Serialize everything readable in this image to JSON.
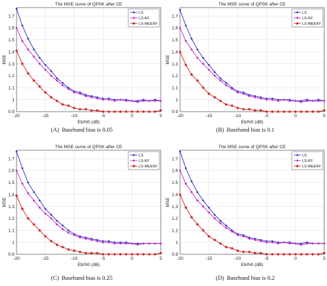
{
  "figure": {
    "panels": [
      {
        "caption_label": "(A)",
        "caption_text": "Baseband bias is 0.05"
      },
      {
        "caption_label": "(B)",
        "caption_text": "Baseband bias is 0.1"
      },
      {
        "caption_label": "(C)",
        "caption_text": "Baseband bias is 0.25"
      },
      {
        "caption_label": "(D)",
        "caption_text": "Baseband bias is 0.2"
      }
    ]
  },
  "colors": {
    "LS": "#2b2fc4",
    "LS-KF": "#c228c8",
    "LS-MEEKF": "#cc2020",
    "grid": "#e2e2e2",
    "axis": "#555555"
  },
  "chart_data": [
    {
      "type": "line",
      "title": "The MSE curve of QPSK after CE",
      "xlabel": "Eb/N0 (dB)",
      "ylabel": "MSE",
      "xlim": [
        -20,
        5
      ],
      "ylim": [
        0.9,
        1.77
      ],
      "xticks": [
        -20,
        -15,
        -10,
        -5,
        0,
        5
      ],
      "yticks": [
        0.9,
        1,
        1.1,
        1.2,
        1.3,
        1.4,
        1.5,
        1.6,
        1.7
      ],
      "grid": true,
      "legend_position": "top-right",
      "x": [
        -20,
        -19,
        -18,
        -17,
        -16,
        -15,
        -14,
        -13,
        -12,
        -11,
        -10,
        -9,
        -8,
        -7,
        -6,
        -5,
        -4,
        -3,
        -2,
        -1,
        0,
        1,
        2,
        3,
        4,
        5
      ],
      "series": [
        {
          "name": "LS",
          "values": [
            1.76,
            1.62,
            1.51,
            1.42,
            1.35,
            1.29,
            1.24,
            1.18,
            1.14,
            1.1,
            1.07,
            1.06,
            1.04,
            1.03,
            1.02,
            1.01,
            1.01,
            1.0,
            1.0,
            1.0,
            0.99,
            0.99,
            1.0,
            0.99,
            1.0,
            0.99
          ]
        },
        {
          "name": "LS-KF",
          "values": [
            1.6,
            1.49,
            1.42,
            1.36,
            1.3,
            1.25,
            1.2,
            1.16,
            1.12,
            1.09,
            1.06,
            1.05,
            1.03,
            1.02,
            1.01,
            1.0,
            1.0,
            0.99,
            1.0,
            0.99,
            0.99,
            0.98,
            0.99,
            0.99,
            0.99,
            0.99
          ]
        },
        {
          "name": "LS-MEEKF",
          "values": [
            1.41,
            1.3,
            1.22,
            1.16,
            1.11,
            1.06,
            1.02,
            0.99,
            0.96,
            0.95,
            0.93,
            0.92,
            0.92,
            0.91,
            0.91,
            0.9,
            0.9,
            0.9,
            0.9,
            0.9,
            0.9,
            0.9,
            0.9,
            0.9,
            0.9,
            0.91
          ]
        }
      ]
    },
    {
      "type": "line",
      "title": "The MSE curve of QPSK after CE",
      "xlabel": "Eb/N0 (dB)",
      "ylabel": "MSE",
      "xlim": [
        -20,
        5
      ],
      "ylim": [
        0.9,
        1.77
      ],
      "xticks": [
        -20,
        -15,
        -10,
        -5,
        0,
        5
      ],
      "yticks": [
        0.9,
        1,
        1.1,
        1.2,
        1.3,
        1.4,
        1.5,
        1.6,
        1.7
      ],
      "grid": true,
      "legend_position": "top-right",
      "x": [
        -20,
        -19,
        -18,
        -17,
        -16,
        -15,
        -14,
        -13,
        -12,
        -11,
        -10,
        -9,
        -8,
        -7,
        -6,
        -5,
        -4,
        -3,
        -2,
        -1,
        0,
        1,
        2,
        3,
        4,
        5
      ],
      "series": [
        {
          "name": "LS",
          "values": [
            1.75,
            1.62,
            1.51,
            1.42,
            1.35,
            1.29,
            1.23,
            1.18,
            1.14,
            1.1,
            1.07,
            1.06,
            1.04,
            1.03,
            1.02,
            1.01,
            1.01,
            1.0,
            1.0,
            1.0,
            0.99,
            0.99,
            1.0,
            0.99,
            1.0,
            0.99
          ]
        },
        {
          "name": "LS-KF",
          "values": [
            1.6,
            1.49,
            1.42,
            1.35,
            1.3,
            1.25,
            1.2,
            1.16,
            1.12,
            1.09,
            1.06,
            1.05,
            1.03,
            1.02,
            1.01,
            1.0,
            1.0,
            0.99,
            1.0,
            0.99,
            0.99,
            0.98,
            0.99,
            0.99,
            0.99,
            0.99
          ]
        },
        {
          "name": "LS-MEEKF",
          "values": [
            1.4,
            1.29,
            1.21,
            1.16,
            1.1,
            1.05,
            1.02,
            0.99,
            0.96,
            0.95,
            0.93,
            0.92,
            0.92,
            0.91,
            0.91,
            0.9,
            0.9,
            0.9,
            0.9,
            0.9,
            0.9,
            0.9,
            0.9,
            0.9,
            0.9,
            0.91
          ]
        }
      ]
    },
    {
      "type": "line",
      "title": "The MSE curve of QPSK after CE",
      "xlabel": "Eb/N0 (dB)",
      "ylabel": "MSE",
      "xlim": [
        -20,
        5
      ],
      "ylim": [
        0.9,
        1.77
      ],
      "xticks": [
        -20,
        -15,
        -10,
        -5,
        0,
        5
      ],
      "yticks": [
        0.9,
        1,
        1.1,
        1.2,
        1.3,
        1.4,
        1.5,
        1.6,
        1.7
      ],
      "grid": true,
      "legend_position": "top-right",
      "x": [
        -20,
        -19,
        -18,
        -17,
        -16,
        -15,
        -14,
        -13,
        -12,
        -11,
        -10,
        -9,
        -8,
        -7,
        -6,
        -5,
        -4,
        -3,
        -2,
        -1,
        0,
        1,
        2,
        3,
        4,
        5
      ],
      "series": [
        {
          "name": "LS",
          "values": [
            1.76,
            1.62,
            1.5,
            1.42,
            1.35,
            1.28,
            1.23,
            1.18,
            1.14,
            1.1,
            1.07,
            1.05,
            1.04,
            1.03,
            1.02,
            1.01,
            1.01,
            1.0,
            1.0,
            1.0,
            0.99,
            0.99,
            0.99,
            0.99,
            0.99,
            0.99
          ]
        },
        {
          "name": "LS-KF",
          "values": [
            1.6,
            1.49,
            1.41,
            1.35,
            1.29,
            1.24,
            1.2,
            1.15,
            1.11,
            1.08,
            1.06,
            1.04,
            1.03,
            1.02,
            1.01,
            1.0,
            1.0,
            0.99,
            0.99,
            0.99,
            0.99,
            0.98,
            0.99,
            0.99,
            0.99,
            0.99
          ]
        },
        {
          "name": "LS-MEEKF",
          "values": [
            1.39,
            1.28,
            1.2,
            1.15,
            1.1,
            1.05,
            1.01,
            0.98,
            0.96,
            0.94,
            0.93,
            0.92,
            0.91,
            0.91,
            0.91,
            0.9,
            0.9,
            0.9,
            0.9,
            0.9,
            0.9,
            0.9,
            0.9,
            0.9,
            0.9,
            0.91
          ]
        }
      ]
    },
    {
      "type": "line",
      "title": "The MSE curve of QPSK after CE",
      "xlabel": "Eb/N0 (dB)",
      "ylabel": "MSE",
      "xlim": [
        -20,
        5
      ],
      "ylim": [
        0.9,
        1.77
      ],
      "xticks": [
        -20,
        -15,
        -10,
        -5,
        0,
        5
      ],
      "yticks": [
        0.9,
        1,
        1.1,
        1.2,
        1.3,
        1.4,
        1.5,
        1.6,
        1.7
      ],
      "grid": true,
      "legend_position": "top-right",
      "x": [
        -20,
        -19,
        -18,
        -17,
        -16,
        -15,
        -14,
        -13,
        -12,
        -11,
        -10,
        -9,
        -8,
        -7,
        -6,
        -5,
        -4,
        -3,
        -2,
        -1,
        0,
        1,
        2,
        3,
        4,
        5
      ],
      "series": [
        {
          "name": "LS",
          "values": [
            1.76,
            1.62,
            1.51,
            1.42,
            1.35,
            1.29,
            1.23,
            1.18,
            1.14,
            1.1,
            1.07,
            1.06,
            1.04,
            1.03,
            1.02,
            1.01,
            1.01,
            1.0,
            1.0,
            1.0,
            0.99,
            0.99,
            1.0,
            0.99,
            0.99,
            0.99
          ]
        },
        {
          "name": "LS-KF",
          "values": [
            1.6,
            1.49,
            1.42,
            1.35,
            1.3,
            1.25,
            1.2,
            1.16,
            1.12,
            1.09,
            1.06,
            1.05,
            1.03,
            1.02,
            1.01,
            1.0,
            1.0,
            0.99,
            1.0,
            0.99,
            0.99,
            0.98,
            0.99,
            0.99,
            0.99,
            0.99
          ]
        },
        {
          "name": "LS-MEEKF",
          "values": [
            1.4,
            1.29,
            1.21,
            1.15,
            1.1,
            1.05,
            1.02,
            0.99,
            0.96,
            0.95,
            0.93,
            0.92,
            0.92,
            0.91,
            0.91,
            0.9,
            0.9,
            0.9,
            0.9,
            0.9,
            0.9,
            0.9,
            0.9,
            0.9,
            0.9,
            0.91
          ]
        }
      ]
    }
  ]
}
